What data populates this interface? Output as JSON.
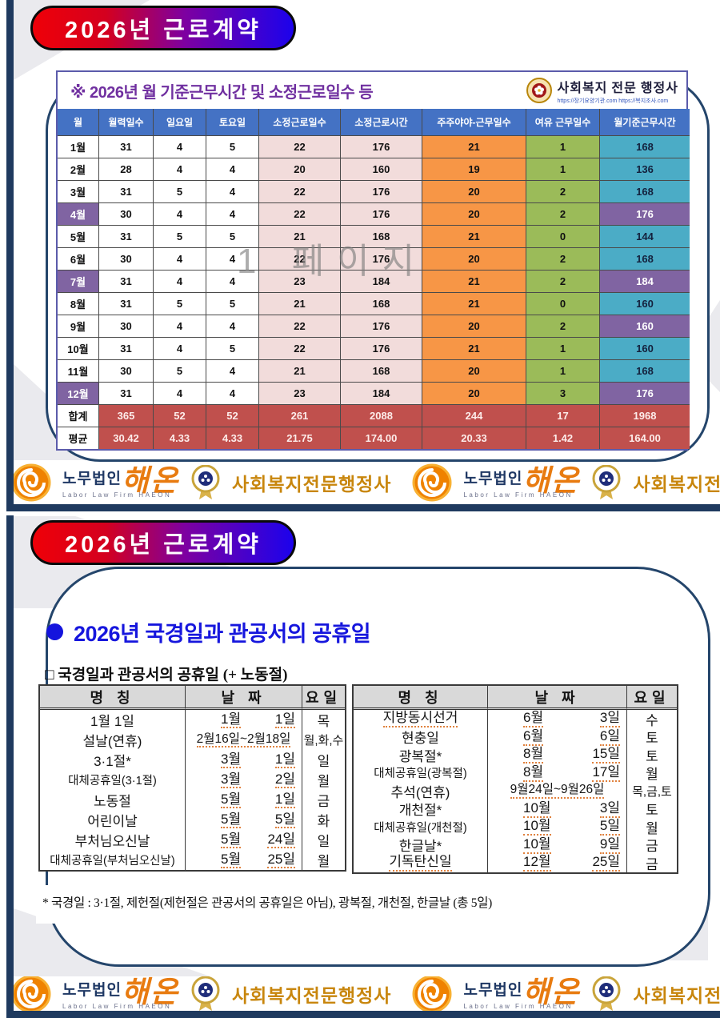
{
  "slide1": {
    "title": "2026년  근로계약",
    "table_title": "※ 2026년 월 기준근무시간 및 소정근로일수 등",
    "logo": {
      "name": "사회복지 전문 행정사",
      "urls": "https://장기요양기관.com  https://복지조사.com"
    },
    "columns": [
      "월",
      "월력일수",
      "일요일",
      "토요일",
      "소정근로일수",
      "소정근로시간",
      "주주야야-근무일수",
      "여유 근무일수",
      "월기준근무시간"
    ],
    "rows": [
      {
        "month": "1월",
        "days": "31",
        "sun": "4",
        "sat": "5",
        "workdays": "22",
        "workhours": "176",
        "shift": "21",
        "spare": "1",
        "std": "168",
        "month_hl": false,
        "std_hl": false
      },
      {
        "month": "2월",
        "days": "28",
        "sun": "4",
        "sat": "4",
        "workdays": "20",
        "workhours": "160",
        "shift": "19",
        "spare": "1",
        "std": "136",
        "month_hl": false,
        "std_hl": false
      },
      {
        "month": "3월",
        "days": "31",
        "sun": "5",
        "sat": "4",
        "workdays": "22",
        "workhours": "176",
        "shift": "20",
        "spare": "2",
        "std": "168",
        "month_hl": false,
        "std_hl": false
      },
      {
        "month": "4월",
        "days": "30",
        "sun": "4",
        "sat": "4",
        "workdays": "22",
        "workhours": "176",
        "shift": "20",
        "spare": "2",
        "std": "176",
        "month_hl": true,
        "std_hl": true
      },
      {
        "month": "5월",
        "days": "31",
        "sun": "5",
        "sat": "5",
        "workdays": "21",
        "workhours": "168",
        "shift": "21",
        "spare": "0",
        "std": "144",
        "month_hl": false,
        "std_hl": false
      },
      {
        "month": "6월",
        "days": "30",
        "sun": "4",
        "sat": "4",
        "workdays": "22",
        "workhours": "176",
        "shift": "20",
        "spare": "2",
        "std": "168",
        "month_hl": false,
        "std_hl": false
      },
      {
        "month": "7월",
        "days": "31",
        "sun": "4",
        "sat": "4",
        "workdays": "23",
        "workhours": "184",
        "shift": "21",
        "spare": "2",
        "std": "184",
        "month_hl": true,
        "std_hl": true
      },
      {
        "month": "8월",
        "days": "31",
        "sun": "5",
        "sat": "5",
        "workdays": "21",
        "workhours": "168",
        "shift": "21",
        "spare": "0",
        "std": "160",
        "month_hl": false,
        "std_hl": false
      },
      {
        "month": "9월",
        "days": "30",
        "sun": "4",
        "sat": "4",
        "workdays": "22",
        "workhours": "176",
        "shift": "20",
        "spare": "2",
        "std": "160",
        "month_hl": false,
        "std_hl": true
      },
      {
        "month": "10월",
        "days": "31",
        "sun": "4",
        "sat": "5",
        "workdays": "22",
        "workhours": "176",
        "shift": "21",
        "spare": "1",
        "std": "160",
        "month_hl": false,
        "std_hl": false
      },
      {
        "month": "11월",
        "days": "30",
        "sun": "5",
        "sat": "4",
        "workdays": "21",
        "workhours": "168",
        "shift": "20",
        "spare": "1",
        "std": "168",
        "month_hl": false,
        "std_hl": false
      },
      {
        "month": "12월",
        "days": "31",
        "sun": "4",
        "sat": "4",
        "workdays": "23",
        "workhours": "184",
        "shift": "20",
        "spare": "3",
        "std": "176",
        "month_hl": true,
        "std_hl": true
      }
    ],
    "total": [
      "합계",
      "365",
      "52",
      "52",
      "261",
      "2088",
      "244",
      "17",
      "1968"
    ],
    "average": [
      "평균",
      "30.42",
      "4.33",
      "4.33",
      "21.75",
      "174.00",
      "20.33",
      "1.42",
      "164.00"
    ],
    "watermark": "1 페이지"
  },
  "slide2": {
    "title": "2026년  근로계약",
    "heading": "2026년 국경일과 관공서의 공휴일",
    "subtitle": "□ 국경일과 관공서의 공휴일 (+ 노동절)",
    "table_headers": [
      "명  칭",
      "날  짜",
      "요일"
    ],
    "left_rows": [
      {
        "name": "1월 1일",
        "date_m": "1월",
        "date_d": "1일",
        "day": "목",
        "range": "",
        "name_u": false
      },
      {
        "name": "설날(연휴)",
        "date_m": "",
        "date_d": "",
        "day": "월,화,수",
        "range": "2월16일~2월18일",
        "name_u": false
      },
      {
        "name": "3·1절*",
        "date_m": "3월",
        "date_d": "1일",
        "day": "일",
        "range": "",
        "name_u": false
      },
      {
        "name": "대체공휴일(3·1절)",
        "date_m": "3월",
        "date_d": "2일",
        "day": "월",
        "range": "",
        "name_u": false
      },
      {
        "name": "노동절",
        "date_m": "5월",
        "date_d": "1일",
        "day": "금",
        "range": "",
        "name_u": false
      },
      {
        "name": "어린이날",
        "date_m": "5월",
        "date_d": "5일",
        "day": "화",
        "range": "",
        "name_u": false
      },
      {
        "name": "부처님오신날",
        "date_m": "5월",
        "date_d": "24일",
        "day": "일",
        "range": "",
        "name_u": false
      },
      {
        "name": "대체공휴일(부처님오신날)",
        "date_m": "5월",
        "date_d": "25일",
        "day": "월",
        "range": "",
        "name_u": false
      }
    ],
    "right_rows": [
      {
        "name": "지방동시선거",
        "date_m": "6월",
        "date_d": "3일",
        "day": "수",
        "range": "",
        "name_u": true
      },
      {
        "name": "현충일",
        "date_m": "6월",
        "date_d": "6일",
        "day": "토",
        "range": "",
        "name_u": false
      },
      {
        "name": "광복절*",
        "date_m": "8월",
        "date_d": "15일",
        "day": "토",
        "range": "",
        "name_u": false
      },
      {
        "name": "대체공휴일(광복절)",
        "date_m": "8월",
        "date_d": "17일",
        "day": "월",
        "range": "",
        "name_u": false
      },
      {
        "name": "추석(연휴)",
        "date_m": "",
        "date_d": "",
        "day": "목,금,토",
        "range": "9월24일~9월26일",
        "name_u": false
      },
      {
        "name": "개천절*",
        "date_m": "10월",
        "date_d": "3일",
        "day": "토",
        "range": "",
        "name_u": false
      },
      {
        "name": "대체공휴일(개천절)",
        "date_m": "10월",
        "date_d": "5일",
        "day": "월",
        "range": "",
        "name_u": false
      },
      {
        "name": "한글날*",
        "date_m": "10월",
        "date_d": "9일",
        "day": "금",
        "range": "",
        "name_u": false
      },
      {
        "name": "기독탄신일",
        "date_m": "12월",
        "date_d": "25일",
        "day": "금",
        "range": "",
        "name_u": true
      }
    ],
    "footnote": "* 국경일 : 3·1절, 제헌절(제헌절은 관공서의 공휴일은 아님), 광복절, 개천절, 한글날 (총 5일)"
  },
  "footer": {
    "firm_prefix": "노무법인",
    "firm_name": "해온",
    "firm_sub": "Labor Law Firm HAEON",
    "assoc_name": "사회복지전문행정사"
  },
  "colors": {
    "header_blue": "#4472c4",
    "pink": "#f2dcdb",
    "orange": "#f79646",
    "green": "#9bbb59",
    "teal": "#4bacc6",
    "purple": "#8064a2",
    "red": "#c0504d",
    "navy_frame": "#1f3a5f",
    "title_purple": "#7030a0",
    "heading_blue": "#1616dd"
  }
}
